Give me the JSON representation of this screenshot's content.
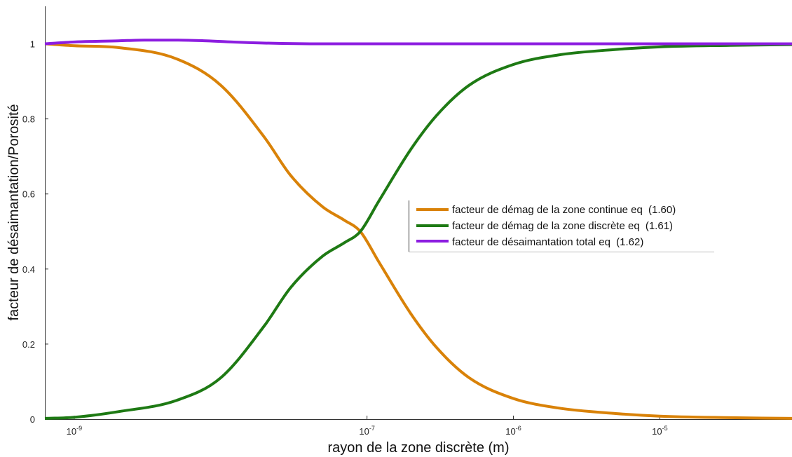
{
  "chart_data": {
    "type": "line",
    "title": "",
    "xlabel": "rayon de la zone discrète (m)",
    "ylabel": "facteur de désaimantation/Porosité",
    "xscale": "log",
    "xlim": [
      6.3e-10,
      8e-05
    ],
    "ylim": [
      0,
      1.1
    ],
    "x_ticks": [
      {
        "value": 1e-09,
        "base": "10",
        "exp": "-9"
      },
      {
        "value": 1e-07,
        "base": "10",
        "exp": "-7"
      },
      {
        "value": 1e-06,
        "base": "10",
        "exp": "-6"
      },
      {
        "value": 1e-05,
        "base": "10",
        "exp": "-5"
      }
    ],
    "y_ticks": [
      {
        "value": 0,
        "label": "0"
      },
      {
        "value": 0.2,
        "label": "0.2"
      },
      {
        "value": 0.4,
        "label": "0.4"
      },
      {
        "value": 0.6,
        "label": "0.6"
      },
      {
        "value": 0.8,
        "label": "0.8"
      },
      {
        "value": 1,
        "label": "1"
      }
    ],
    "grid": false,
    "legend_position": "center-right",
    "series": [
      {
        "name": "facteur de démag de la zone continue eq",
        "name_suffix": "(1.60)",
        "color": "#d98208",
        "x": [
          6.3e-10,
          1e-09,
          2e-09,
          5e-09,
          1e-08,
          2e-08,
          3e-08,
          5e-08,
          7e-08,
          9e-08,
          1.2e-07,
          2e-07,
          3e-07,
          5e-07,
          1e-06,
          2e-06,
          5e-06,
          1e-05,
          3e-05,
          8e-05
        ],
        "y": [
          1.0,
          0.995,
          0.99,
          0.96,
          0.89,
          0.75,
          0.65,
          0.565,
          0.53,
          0.5,
          0.42,
          0.28,
          0.19,
          0.11,
          0.055,
          0.03,
          0.015,
          0.008,
          0.004,
          0.002
        ]
      },
      {
        "name": "facteur de démag de la zone discrète eq",
        "name_suffix": "(1.61)",
        "color": "#1e7a14",
        "x": [
          6.3e-10,
          1e-09,
          2e-09,
          5e-09,
          1e-08,
          2e-08,
          3e-08,
          5e-08,
          7e-08,
          9e-08,
          1.2e-07,
          2e-07,
          3e-07,
          5e-07,
          1e-06,
          2e-06,
          5e-06,
          1e-05,
          3e-05,
          8e-05
        ],
        "y": [
          0.002,
          0.005,
          0.02,
          0.05,
          0.11,
          0.25,
          0.35,
          0.435,
          0.47,
          0.5,
          0.58,
          0.72,
          0.81,
          0.89,
          0.945,
          0.97,
          0.985,
          0.992,
          0.996,
          0.998
        ]
      },
      {
        "name": "facteur de désaimantation total eq",
        "name_suffix": "(1.62)",
        "color": "#8c1de0",
        "x": [
          6.3e-10,
          1e-09,
          2e-09,
          3e-09,
          5e-09,
          8e-09,
          1.2e-08,
          2e-08,
          5e-08,
          1e-07,
          1e-06,
          1e-05,
          8e-05
        ],
        "y": [
          1.0,
          1.005,
          1.008,
          1.01,
          1.01,
          1.008,
          1.005,
          1.002,
          1.0,
          1.0,
          1.0,
          1.0,
          1.0
        ]
      }
    ]
  }
}
